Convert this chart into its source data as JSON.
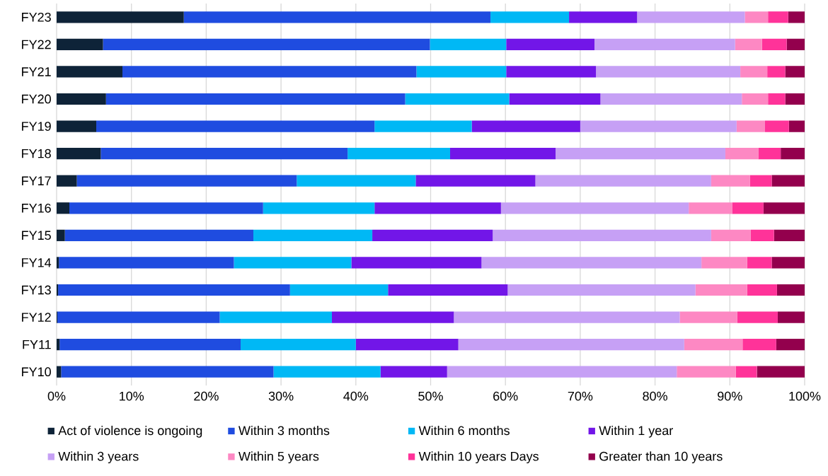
{
  "chart_data": {
    "type": "bar",
    "orientation": "horizontal",
    "stacked": true,
    "categories": [
      "FY23",
      "FY22",
      "FY21",
      "FY20",
      "FY19",
      "FY18",
      "FY17",
      "FY16",
      "FY15",
      "FY14",
      "FY13",
      "FY12",
      "FY11",
      "FY10"
    ],
    "series": [
      {
        "name": "Act of violence is ongoing",
        "color": "#0e2338",
        "values": [
          17.0,
          6.2,
          8.8,
          6.6,
          5.3,
          5.9,
          2.7,
          1.7,
          1.1,
          0.3,
          0.2,
          0.1,
          0.4,
          0.6
        ]
      },
      {
        "name": "Within 3 months",
        "color": "#1f4ce0",
        "values": [
          41.0,
          43.7,
          39.3,
          40.0,
          37.2,
          33.0,
          29.4,
          25.9,
          25.2,
          23.4,
          31.0,
          21.7,
          24.2,
          28.4
        ]
      },
      {
        "name": "Within 6 months",
        "color": "#00b8f5",
        "values": [
          10.5,
          10.2,
          12.0,
          13.9,
          13.0,
          13.7,
          15.9,
          14.9,
          15.9,
          15.7,
          13.1,
          15.0,
          15.4,
          14.3
        ]
      },
      {
        "name": "Within 1 year",
        "color": "#7216e8",
        "values": [
          9.1,
          11.8,
          12.0,
          12.2,
          14.5,
          14.1,
          16.0,
          16.9,
          16.1,
          17.4,
          16.0,
          16.3,
          13.7,
          8.9
        ]
      },
      {
        "name": "Within 3 years",
        "color": "#c6a0f5",
        "values": [
          14.4,
          18.8,
          19.3,
          18.9,
          20.9,
          22.7,
          23.5,
          25.1,
          29.2,
          29.4,
          25.1,
          30.2,
          30.2,
          30.7
        ]
      },
      {
        "name": "Within 5 years",
        "color": "#fd88c3",
        "values": [
          3.1,
          3.6,
          3.6,
          3.5,
          3.8,
          4.4,
          5.2,
          5.8,
          5.3,
          6.1,
          6.9,
          7.7,
          7.8,
          7.9
        ]
      },
      {
        "name": "Within 10 years Days",
        "color": "#ff3399",
        "values": [
          2.7,
          3.3,
          2.4,
          2.3,
          3.2,
          3.0,
          2.9,
          4.2,
          3.1,
          3.3,
          4.0,
          5.4,
          4.5,
          2.8
        ]
      },
      {
        "name": "Greater than 10 years",
        "color": "#93004d",
        "values": [
          2.2,
          2.4,
          2.6,
          2.6,
          2.1,
          3.2,
          4.4,
          5.5,
          4.1,
          4.4,
          3.7,
          3.6,
          3.8,
          6.4
        ]
      }
    ],
    "xlim": [
      0,
      100
    ],
    "xticks": [
      {
        "value": 0,
        "label": "0%"
      },
      {
        "value": 10,
        "label": "10%"
      },
      {
        "value": 20,
        "label": "20%"
      },
      {
        "value": 30,
        "label": "30%"
      },
      {
        "value": 40,
        "label": "40%"
      },
      {
        "value": 50,
        "label": "50%"
      },
      {
        "value": 60,
        "label": "60%"
      },
      {
        "value": 70,
        "label": "70%"
      },
      {
        "value": 80,
        "label": "80%"
      },
      {
        "value": 90,
        "label": "90%"
      },
      {
        "value": 100,
        "label": "100%"
      }
    ],
    "grid": "x",
    "legend": "bottom"
  }
}
